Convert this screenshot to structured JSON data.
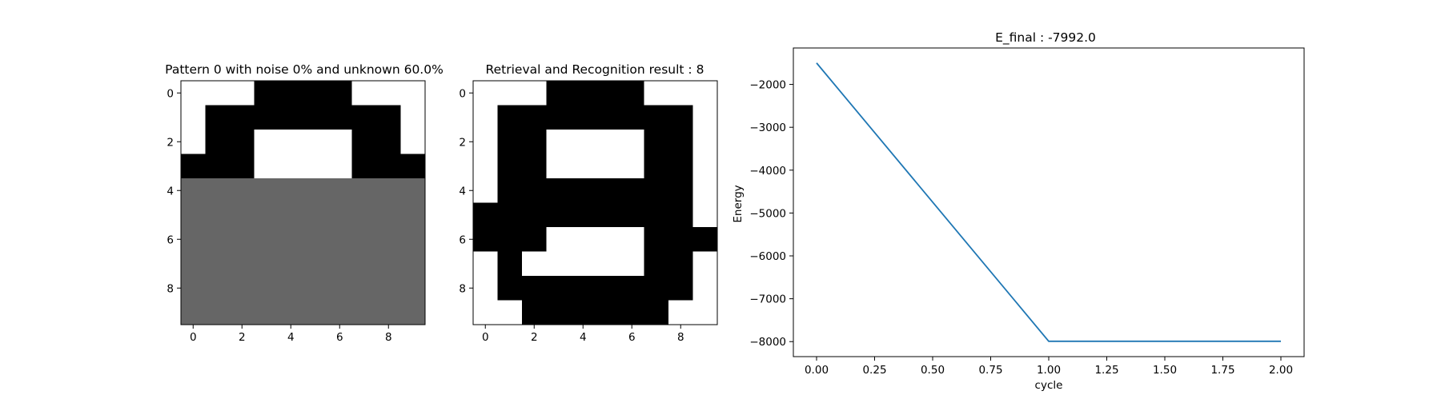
{
  "chart_data": [
    {
      "type": "heatmap",
      "title": "Pattern 0 with noise 0% and unknown 60.0%",
      "legend_values": {
        "black": 1,
        "white": -1,
        "gray": 0
      },
      "colors": {
        "1": "#000000",
        "-1": "#ffffff",
        "0": "#666666"
      },
      "xticks": [
        "0",
        "2",
        "4",
        "6",
        "8"
      ],
      "yticks": [
        "0",
        "2",
        "4",
        "6",
        "8"
      ],
      "grid": [
        [
          -1,
          -1,
          -1,
          1,
          1,
          1,
          1,
          -1,
          -1,
          -1
        ],
        [
          -1,
          1,
          1,
          1,
          1,
          1,
          1,
          1,
          1,
          -1
        ],
        [
          -1,
          1,
          1,
          -1,
          -1,
          -1,
          -1,
          1,
          1,
          -1
        ],
        [
          1,
          1,
          1,
          -1,
          -1,
          -1,
          -1,
          1,
          1,
          1
        ],
        [
          0,
          0,
          0,
          0,
          0,
          0,
          0,
          0,
          0,
          0
        ],
        [
          0,
          0,
          0,
          0,
          0,
          0,
          0,
          0,
          0,
          0
        ],
        [
          0,
          0,
          0,
          0,
          0,
          0,
          0,
          0,
          0,
          0
        ],
        [
          0,
          0,
          0,
          0,
          0,
          0,
          0,
          0,
          0,
          0
        ],
        [
          0,
          0,
          0,
          0,
          0,
          0,
          0,
          0,
          0,
          0
        ],
        [
          0,
          0,
          0,
          0,
          0,
          0,
          0,
          0,
          0,
          0
        ]
      ]
    },
    {
      "type": "heatmap",
      "title": "Retrieval and Recognition result : 8",
      "colors": {
        "1": "#000000",
        "-1": "#ffffff",
        "0": "#666666"
      },
      "xticks": [
        "0",
        "2",
        "4",
        "6",
        "8"
      ],
      "yticks": [
        "0",
        "2",
        "4",
        "6",
        "8"
      ],
      "grid": [
        [
          -1,
          -1,
          -1,
          1,
          1,
          1,
          1,
          -1,
          -1,
          -1
        ],
        [
          -1,
          1,
          1,
          1,
          1,
          1,
          1,
          1,
          1,
          -1
        ],
        [
          -1,
          1,
          1,
          -1,
          -1,
          -1,
          -1,
          1,
          1,
          -1
        ],
        [
          -1,
          1,
          1,
          -1,
          -1,
          -1,
          -1,
          1,
          1,
          -1
        ],
        [
          -1,
          1,
          1,
          1,
          1,
          1,
          1,
          1,
          1,
          -1
        ],
        [
          1,
          1,
          1,
          1,
          1,
          1,
          1,
          1,
          1,
          -1
        ],
        [
          1,
          1,
          1,
          -1,
          -1,
          -1,
          -1,
          1,
          1,
          1
        ],
        [
          -1,
          1,
          -1,
          -1,
          -1,
          -1,
          -1,
          1,
          1,
          -1
        ],
        [
          -1,
          1,
          1,
          1,
          1,
          1,
          1,
          1,
          1,
          -1
        ],
        [
          -1,
          -1,
          1,
          1,
          1,
          1,
          1,
          1,
          -1,
          -1
        ]
      ]
    },
    {
      "type": "line",
      "title": "E_final : -7992.0",
      "xlabel": "cycle",
      "ylabel": "Energy",
      "x": [
        0,
        1,
        2
      ],
      "series": [
        {
          "values": [
            -1500,
            -7992,
            -7992
          ],
          "color": "#1f77b4"
        }
      ],
      "xlim": [
        -0.1,
        2.1
      ],
      "ylim": [
        -8350,
        -1150
      ],
      "xticks": [
        0.0,
        0.25,
        0.5,
        0.75,
        1.0,
        1.25,
        1.5,
        1.75,
        2.0
      ],
      "xtick_labels": [
        "0.00",
        "0.25",
        "0.50",
        "0.75",
        "1.00",
        "1.25",
        "1.50",
        "1.75",
        "2.00"
      ],
      "yticks": [
        -2000,
        -3000,
        -4000,
        -5000,
        -6000,
        -7000,
        -8000
      ],
      "ytick_labels": [
        "−2000",
        "−3000",
        "−4000",
        "−5000",
        "−6000",
        "−7000",
        "−8000"
      ]
    }
  ]
}
